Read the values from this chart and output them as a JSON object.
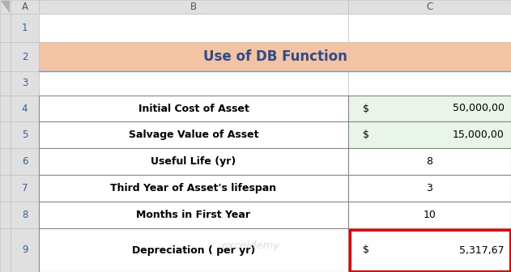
{
  "title": "Use of DB Function",
  "title_bg": "#F2C4A4",
  "title_text_color": "#2E4B8B",
  "col_header_A": "A",
  "col_header_B": "B",
  "col_header_C": "C",
  "rows": [
    {
      "label": "Initial Cost of Asset",
      "dollar": "$",
      "value": "50,000,00",
      "has_dollar": true,
      "green_bg": true,
      "red_border": false
    },
    {
      "label": "Salvage Value of Asset",
      "dollar": "$",
      "value": "15,000,00",
      "has_dollar": true,
      "green_bg": true,
      "red_border": false
    },
    {
      "label": "Useful Life (yr)",
      "dollar": "",
      "value": "8",
      "has_dollar": false,
      "green_bg": false,
      "red_border": false
    },
    {
      "label": "Third Year of Asset's lifespan",
      "dollar": "",
      "value": "3",
      "has_dollar": false,
      "green_bg": false,
      "red_border": false
    },
    {
      "label": "Months in First Year",
      "dollar": "",
      "value": "10",
      "has_dollar": false,
      "green_bg": false,
      "red_border": false
    },
    {
      "label": "Depreciation ( per yr)",
      "dollar": "$",
      "value": "5,317,67",
      "has_dollar": true,
      "green_bg": false,
      "red_border": true
    }
  ],
  "row_numbers": [
    "1",
    "2",
    "3",
    "4",
    "5",
    "6",
    "7",
    "8",
    "9"
  ],
  "header_bg": "#E0E0E0",
  "green_bg": "#E8F5E8",
  "white_bg": "#FFFFFF",
  "border_color": "#C0C0C0",
  "data_border_color": "#888888",
  "red_border_color": "#EE0000",
  "label_text_color": "#000000",
  "value_text_color": "#000000",
  "row_num_color": "#3060A0",
  "col_header_color": "#555555",
  "watermark_color": "#A0BBCC",
  "watermark_alpha": 0.45,
  "corner_triangle_color": "#B0B0B0"
}
